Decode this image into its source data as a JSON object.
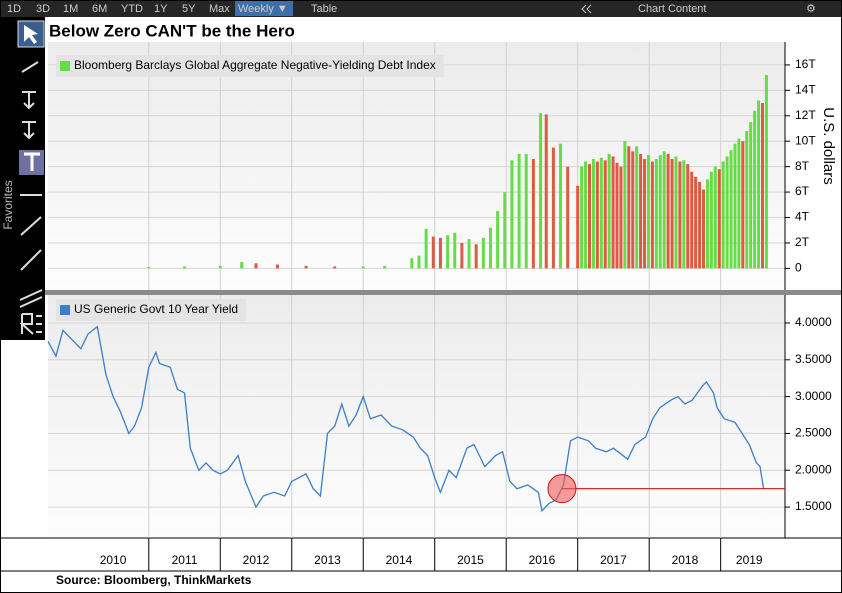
{
  "title": "Below Zero CAN'T be the Hero",
  "source": "Source:  Bloomberg, ThinkMarkets",
  "toolbar": {
    "buttons": [
      "1D",
      "3D",
      "1M",
      "6M",
      "YTD",
      "1Y",
      "5Y",
      "Max",
      "Weekly ▼",
      "Table"
    ],
    "chart_content": "Chart Content"
  },
  "sidebar": {
    "favorites": "Favorites"
  },
  "chart_data": [
    {
      "type": "bar",
      "series": [
        {
          "name": "Bloomberg Barclays Global Aggregate Negative-Yielding Debt Index",
          "color": "#66dd44",
          "down_color": "#dd5a44",
          "x": [
            2011.0,
            2011.5,
            2012.0,
            2012.3,
            2012.5,
            2012.8,
            2013.2,
            2013.6,
            2014.0,
            2014.3,
            2014.68,
            2014.78,
            2014.88,
            2014.98,
            2015.08,
            2015.18,
            2015.28,
            2015.38,
            2015.48,
            2015.58,
            2015.68,
            2015.78,
            2015.88,
            2015.98,
            2016.08,
            2016.18,
            2016.28,
            2016.38,
            2016.48,
            2016.56,
            2016.66,
            2016.76,
            2016.86,
            2017.0,
            2017.055,
            2017.11,
            2017.165,
            2017.22,
            2017.275,
            2017.33,
            2017.385,
            2017.44,
            2017.495,
            2017.55,
            2017.605,
            2017.66,
            2017.715,
            2017.77,
            2017.825,
            2017.88,
            2017.935,
            2017.99,
            2018.045,
            2018.1,
            2018.155,
            2018.21,
            2018.265,
            2018.32,
            2018.375,
            2018.43,
            2018.485,
            2018.54,
            2018.595,
            2018.65,
            2018.705,
            2018.76,
            2018.815,
            2018.87,
            2018.925,
            2018.98,
            2019.035,
            2019.09,
            2019.145,
            2019.2,
            2019.255,
            2019.31,
            2019.365,
            2019.42,
            2019.475,
            2019.53,
            2019.585,
            2019.64
          ],
          "values": [
            0.1,
            0.15,
            0.2,
            0.5,
            0.4,
            0.3,
            0.2,
            0.15,
            0.15,
            0.2,
            0.8,
            1.0,
            3.1,
            2.5,
            2.4,
            2.6,
            2.8,
            2.0,
            2.3,
            1.9,
            2.4,
            3.2,
            4.5,
            6.0,
            8.5,
            9.0,
            9.0,
            8.6,
            12.2,
            12.1,
            9.5,
            9.8,
            8.0,
            6.5,
            8.0,
            8.4,
            8.2,
            8.6,
            8.4,
            8.7,
            8.5,
            9.0,
            8.8,
            8.3,
            8.0,
            10.0,
            9.6,
            9.2,
            9.6,
            9.0,
            8.6,
            8.9,
            8.4,
            8.6,
            8.9,
            9.2,
            9.0,
            8.6,
            8.8,
            8.4,
            8.5,
            8.2,
            7.6,
            7.2,
            6.8,
            6.2,
            7.0,
            7.6,
            8.0,
            7.8,
            8.4,
            8.8,
            9.3,
            9.8,
            10.2,
            10.0,
            10.8,
            11.5,
            12.4,
            13.2,
            13.0,
            15.2
          ]
        }
      ],
      "ylabel": "U.S. dollars",
      "ylim": [
        -1.7,
        17.8
      ],
      "yticks": [
        0,
        {
          "value": 2,
          "label": "2T"
        },
        {
          "value": 4,
          "label": "4T"
        },
        {
          "value": 6,
          "label": "6T"
        },
        {
          "value": 8,
          "label": "8T"
        },
        {
          "value": 10,
          "label": "10T"
        },
        {
          "value": 12,
          "label": "12T"
        },
        {
          "value": 14,
          "label": "14T"
        },
        {
          "value": 16,
          "label": "16T"
        }
      ],
      "xlim": [
        2009.59,
        2019.9
      ],
      "xgrid": [
        2011,
        2012,
        2013,
        2014,
        2015,
        2016,
        2017,
        2018,
        2019
      ],
      "grid": true
    },
    {
      "type": "line",
      "series": [
        {
          "name": "US Generic Govt 10 Year Yield",
          "color": "#3a7fc8",
          "x": [
            2009.59,
            2009.7,
            2009.8,
            2009.95,
            2010.05,
            2010.15,
            2010.28,
            2010.4,
            2010.5,
            2010.6,
            2010.72,
            2010.8,
            2010.9,
            2011.0,
            2011.1,
            2011.15,
            2011.3,
            2011.4,
            2011.5,
            2011.58,
            2011.7,
            2011.8,
            2011.9,
            2012.0,
            2012.1,
            2012.25,
            2012.35,
            2012.5,
            2012.6,
            2012.75,
            2012.9,
            2013.0,
            2013.2,
            2013.3,
            2013.4,
            2013.5,
            2013.6,
            2013.7,
            2013.8,
            2013.9,
            2014.0,
            2014.1,
            2014.25,
            2014.4,
            2014.55,
            2014.7,
            2014.8,
            2014.9,
            2015.0,
            2015.08,
            2015.2,
            2015.3,
            2015.45,
            2015.55,
            2015.7,
            2015.85,
            2015.95,
            2016.05,
            2016.15,
            2016.3,
            2016.45,
            2016.5,
            2016.6,
            2016.7,
            2016.8,
            2016.9,
            2017.0,
            2017.15,
            2017.25,
            2017.4,
            2017.5,
            2017.7,
            2017.8,
            2017.95,
            2018.05,
            2018.15,
            2018.3,
            2018.4,
            2018.5,
            2018.6,
            2018.75,
            2018.8,
            2018.9,
            2018.95,
            2019.05,
            2019.2,
            2019.3,
            2019.4,
            2019.5,
            2019.55,
            2019.6
          ],
          "values": [
            3.75,
            3.55,
            3.9,
            3.75,
            3.65,
            3.85,
            3.95,
            3.3,
            3.0,
            2.8,
            2.5,
            2.6,
            2.85,
            3.4,
            3.6,
            3.45,
            3.4,
            3.1,
            3.05,
            2.3,
            2.0,
            2.1,
            2.0,
            1.95,
            2.0,
            2.2,
            1.85,
            1.5,
            1.65,
            1.7,
            1.65,
            1.85,
            1.95,
            1.75,
            1.65,
            2.5,
            2.6,
            2.9,
            2.6,
            2.75,
            3.0,
            2.7,
            2.75,
            2.6,
            2.55,
            2.45,
            2.3,
            2.2,
            1.9,
            1.7,
            2.0,
            1.9,
            2.3,
            2.35,
            2.05,
            2.2,
            2.25,
            1.85,
            1.75,
            1.8,
            1.7,
            1.45,
            1.55,
            1.6,
            1.8,
            2.4,
            2.45,
            2.4,
            2.3,
            2.25,
            2.3,
            2.15,
            2.35,
            2.45,
            2.7,
            2.85,
            2.95,
            3.0,
            2.9,
            2.95,
            3.15,
            3.2,
            3.05,
            2.85,
            2.7,
            2.65,
            2.5,
            2.35,
            2.1,
            2.05,
            1.75
          ]
        }
      ],
      "ylim": [
        1.08,
        4.38
      ],
      "yticks": [
        {
          "value": 1.5,
          "label": "1.5000"
        },
        {
          "value": 2,
          "label": "2.0000"
        },
        {
          "value": 2.5,
          "label": "2.5000"
        },
        {
          "value": 3,
          "label": "3.0000"
        },
        {
          "value": 3.5,
          "label": "3.5000"
        },
        {
          "value": 4,
          "label": "4.0000"
        }
      ],
      "xlim": [
        2009.59,
        2019.9
      ],
      "xgrid": [
        2011,
        2012,
        2013,
        2014,
        2015,
        2016,
        2017,
        2018,
        2019
      ],
      "xticks": [
        {
          "value": 2010.5,
          "label": "2010"
        },
        {
          "value": 2011.5,
          "label": "2011"
        },
        {
          "value": 2012.5,
          "label": "2012"
        },
        {
          "value": 2013.5,
          "label": "2013"
        },
        {
          "value": 2014.5,
          "label": "2014"
        },
        {
          "value": 2015.5,
          "label": "2015"
        },
        {
          "value": 2016.5,
          "label": "2016"
        },
        {
          "value": 2017.5,
          "label": "2017"
        },
        {
          "value": 2018.5,
          "label": "2018"
        },
        {
          "value": 2019.4,
          "label": "2019"
        }
      ],
      "grid": true,
      "reference_line": {
        "value": 1.75,
        "x_start": 2016.78,
        "color": "#cc1111"
      }
    }
  ]
}
